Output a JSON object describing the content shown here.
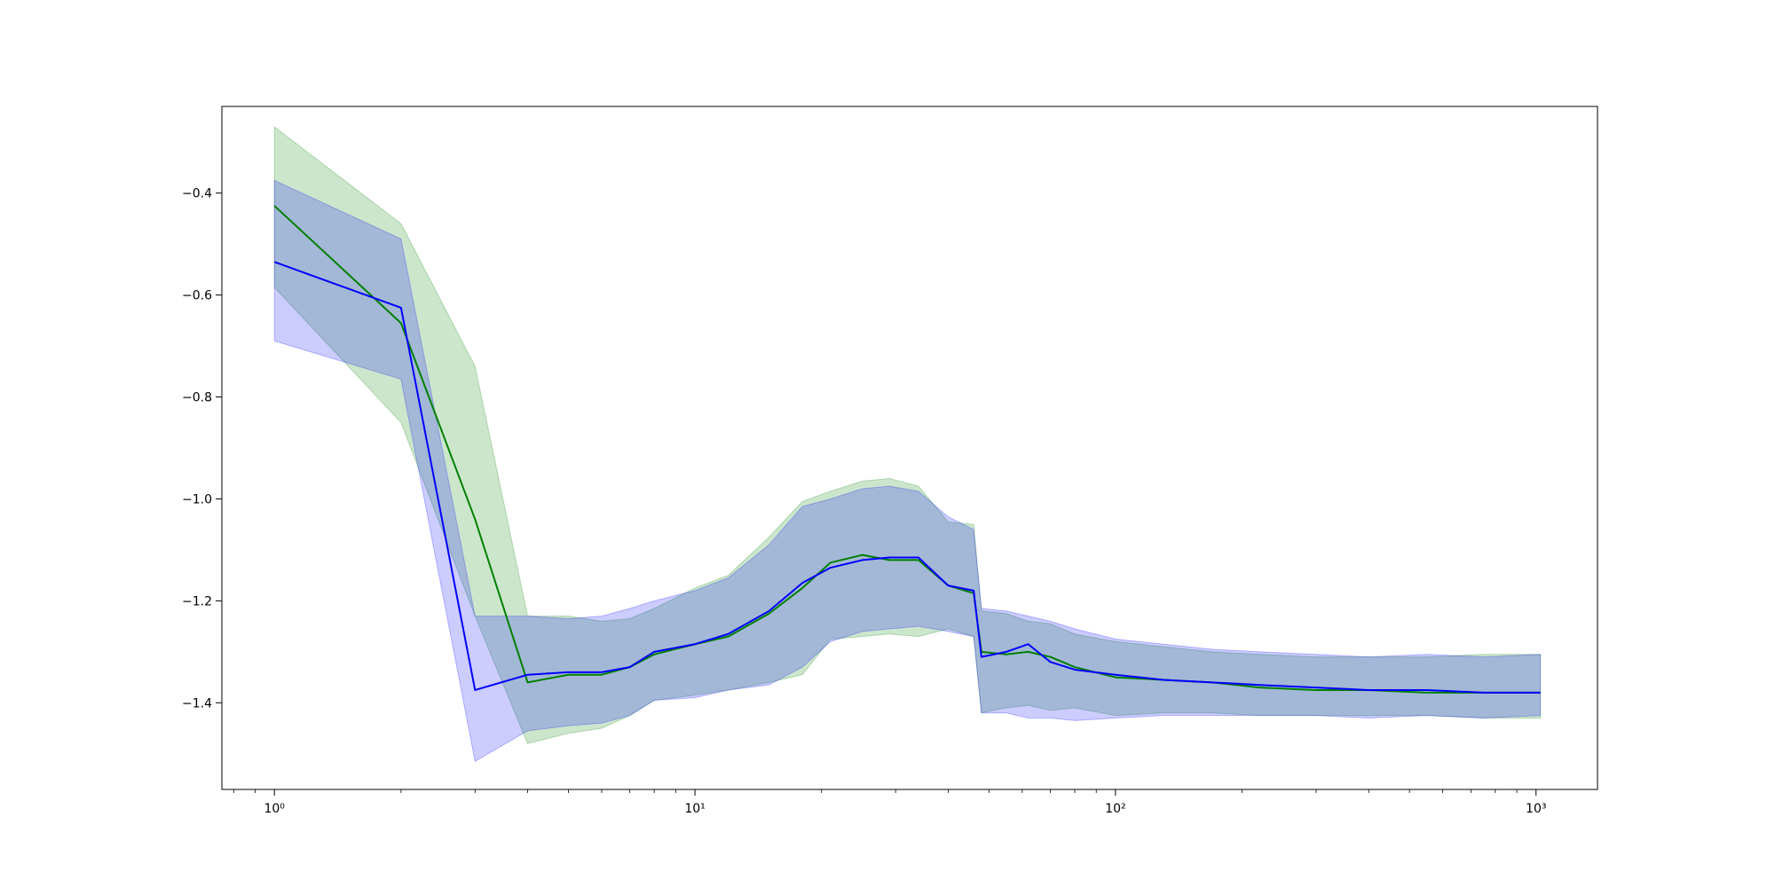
{
  "chart_data": {
    "type": "line",
    "title": "",
    "xlabel": "",
    "ylabel": "",
    "x_scale": "log",
    "xlim": [
      0.75,
      1400
    ],
    "ylim": [
      -1.57,
      -0.23
    ],
    "grid": false,
    "legend": "none",
    "x_ticks": [
      {
        "value": 1,
        "label": "10⁰"
      },
      {
        "value": 10,
        "label": "10¹"
      },
      {
        "value": 100,
        "label": "10²"
      },
      {
        "value": 1000,
        "label": "10³"
      }
    ],
    "y_ticks": [
      {
        "value": -0.4,
        "label": "−0.4"
      },
      {
        "value": -0.6,
        "label": "−0.6"
      },
      {
        "value": -0.8,
        "label": "−0.8"
      },
      {
        "value": -1.0,
        "label": "−1.0"
      },
      {
        "value": -1.2,
        "label": "−1.2"
      },
      {
        "value": -1.4,
        "label": "−1.4"
      }
    ],
    "series": [
      {
        "color": "#008000",
        "band_color": "#008000",
        "band_opacity": 0.2,
        "points": [
          [
            1,
            -0.425,
            -0.27,
            -0.585
          ],
          [
            2,
            -0.655,
            -0.46,
            -0.85
          ],
          [
            3,
            -1.04,
            -0.74,
            -1.23
          ],
          [
            4,
            -1.36,
            -1.23,
            -1.48
          ],
          [
            5,
            -1.345,
            -1.23,
            -1.46
          ],
          [
            6,
            -1.345,
            -1.24,
            -1.45
          ],
          [
            7,
            -1.33,
            -1.235,
            -1.425
          ],
          [
            8,
            -1.305,
            -1.215,
            -1.395
          ],
          [
            10,
            -1.285,
            -1.175,
            -1.385
          ],
          [
            12,
            -1.27,
            -1.15,
            -1.375
          ],
          [
            15,
            -1.225,
            -1.075,
            -1.36
          ],
          [
            18,
            -1.175,
            -1.005,
            -1.345
          ],
          [
            21,
            -1.125,
            -0.985,
            -1.275
          ],
          [
            25,
            -1.11,
            -0.965,
            -1.27
          ],
          [
            29,
            -1.12,
            -0.96,
            -1.265
          ],
          [
            34,
            -1.12,
            -0.975,
            -1.27
          ],
          [
            40,
            -1.17,
            -1.045,
            -1.255
          ],
          [
            46,
            -1.185,
            -1.05,
            -1.27
          ],
          [
            48,
            -1.3,
            -1.22,
            -1.42
          ],
          [
            55,
            -1.305,
            -1.225,
            -1.41
          ],
          [
            62,
            -1.3,
            -1.24,
            -1.405
          ],
          [
            70,
            -1.31,
            -1.245,
            -1.415
          ],
          [
            80,
            -1.33,
            -1.265,
            -1.41
          ],
          [
            100,
            -1.35,
            -1.28,
            -1.425
          ],
          [
            130,
            -1.355,
            -1.29,
            -1.42
          ],
          [
            170,
            -1.36,
            -1.3,
            -1.42
          ],
          [
            220,
            -1.37,
            -1.305,
            -1.425
          ],
          [
            300,
            -1.375,
            -1.31,
            -1.425
          ],
          [
            400,
            -1.375,
            -1.31,
            -1.425
          ],
          [
            550,
            -1.38,
            -1.31,
            -1.425
          ],
          [
            750,
            -1.38,
            -1.305,
            -1.43
          ],
          [
            1024,
            -1.38,
            -1.305,
            -1.43
          ]
        ]
      },
      {
        "color": "#0000ff",
        "band_color": "#0000ff",
        "band_opacity": 0.2,
        "points": [
          [
            1,
            -0.535,
            -0.375,
            -0.69
          ],
          [
            2,
            -0.625,
            -0.49,
            -0.765
          ],
          [
            3,
            -1.375,
            -1.23,
            -1.515
          ],
          [
            4,
            -1.345,
            -1.23,
            -1.455
          ],
          [
            5,
            -1.34,
            -1.235,
            -1.445
          ],
          [
            6,
            -1.34,
            -1.23,
            -1.44
          ],
          [
            7,
            -1.33,
            -1.215,
            -1.425
          ],
          [
            8,
            -1.3,
            -1.2,
            -1.395
          ],
          [
            10,
            -1.285,
            -1.18,
            -1.39
          ],
          [
            12,
            -1.265,
            -1.155,
            -1.375
          ],
          [
            15,
            -1.22,
            -1.09,
            -1.365
          ],
          [
            18,
            -1.165,
            -1.015,
            -1.33
          ],
          [
            21,
            -1.135,
            -1.0,
            -1.28
          ],
          [
            25,
            -1.12,
            -0.98,
            -1.26
          ],
          [
            29,
            -1.115,
            -0.975,
            -1.255
          ],
          [
            34,
            -1.115,
            -0.985,
            -1.25
          ],
          [
            40,
            -1.17,
            -1.035,
            -1.26
          ],
          [
            46,
            -1.18,
            -1.06,
            -1.27
          ],
          [
            48,
            -1.31,
            -1.215,
            -1.42
          ],
          [
            55,
            -1.3,
            -1.22,
            -1.42
          ],
          [
            62,
            -1.285,
            -1.23,
            -1.43
          ],
          [
            70,
            -1.32,
            -1.24,
            -1.43
          ],
          [
            80,
            -1.335,
            -1.255,
            -1.435
          ],
          [
            100,
            -1.345,
            -1.275,
            -1.43
          ],
          [
            130,
            -1.355,
            -1.285,
            -1.425
          ],
          [
            170,
            -1.36,
            -1.295,
            -1.425
          ],
          [
            220,
            -1.365,
            -1.3,
            -1.425
          ],
          [
            300,
            -1.37,
            -1.305,
            -1.425
          ],
          [
            400,
            -1.375,
            -1.31,
            -1.43
          ],
          [
            550,
            -1.375,
            -1.305,
            -1.425
          ],
          [
            750,
            -1.38,
            -1.31,
            -1.43
          ],
          [
            1024,
            -1.38,
            -1.305,
            -1.425
          ]
        ]
      }
    ]
  }
}
